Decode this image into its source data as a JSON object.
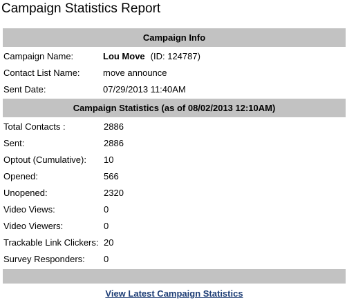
{
  "page": {
    "title": "Campaign Statistics Report"
  },
  "campaign_info": {
    "header": "Campaign Info",
    "campaign_name_label": "Campaign Name:",
    "campaign_name": "Lou Move",
    "campaign_id_text": "(ID:  124787)",
    "contact_list_label": "Contact List Name:",
    "contact_list": "move announce",
    "sent_date_label": "Sent Date:",
    "sent_date": "07/29/2013 11:40AM"
  },
  "campaign_stats": {
    "header": "Campaign Statistics (as of 08/02/2013 12:10AM)",
    "rows": [
      {
        "label": "Total Contacts :",
        "value": "2886"
      },
      {
        "label": "Sent:",
        "value": "2886"
      },
      {
        "label": "Optout (Cumulative):",
        "value": "10"
      },
      {
        "label": "Opened:",
        "value": "566"
      },
      {
        "label": "Unopened:",
        "value": "2320"
      },
      {
        "label": "Video Views:",
        "value": "0"
      },
      {
        "label": "Video Viewers:",
        "value": "0"
      },
      {
        "label": "Trackable Link Clickers:",
        "value": "20"
      },
      {
        "label": "Survey Responders:",
        "value": "0"
      }
    ]
  },
  "footer": {
    "link_text": "View Latest Campaign Statistics"
  },
  "colors": {
    "header_bg": "#c2c2c2",
    "link": "#1e3e76"
  }
}
